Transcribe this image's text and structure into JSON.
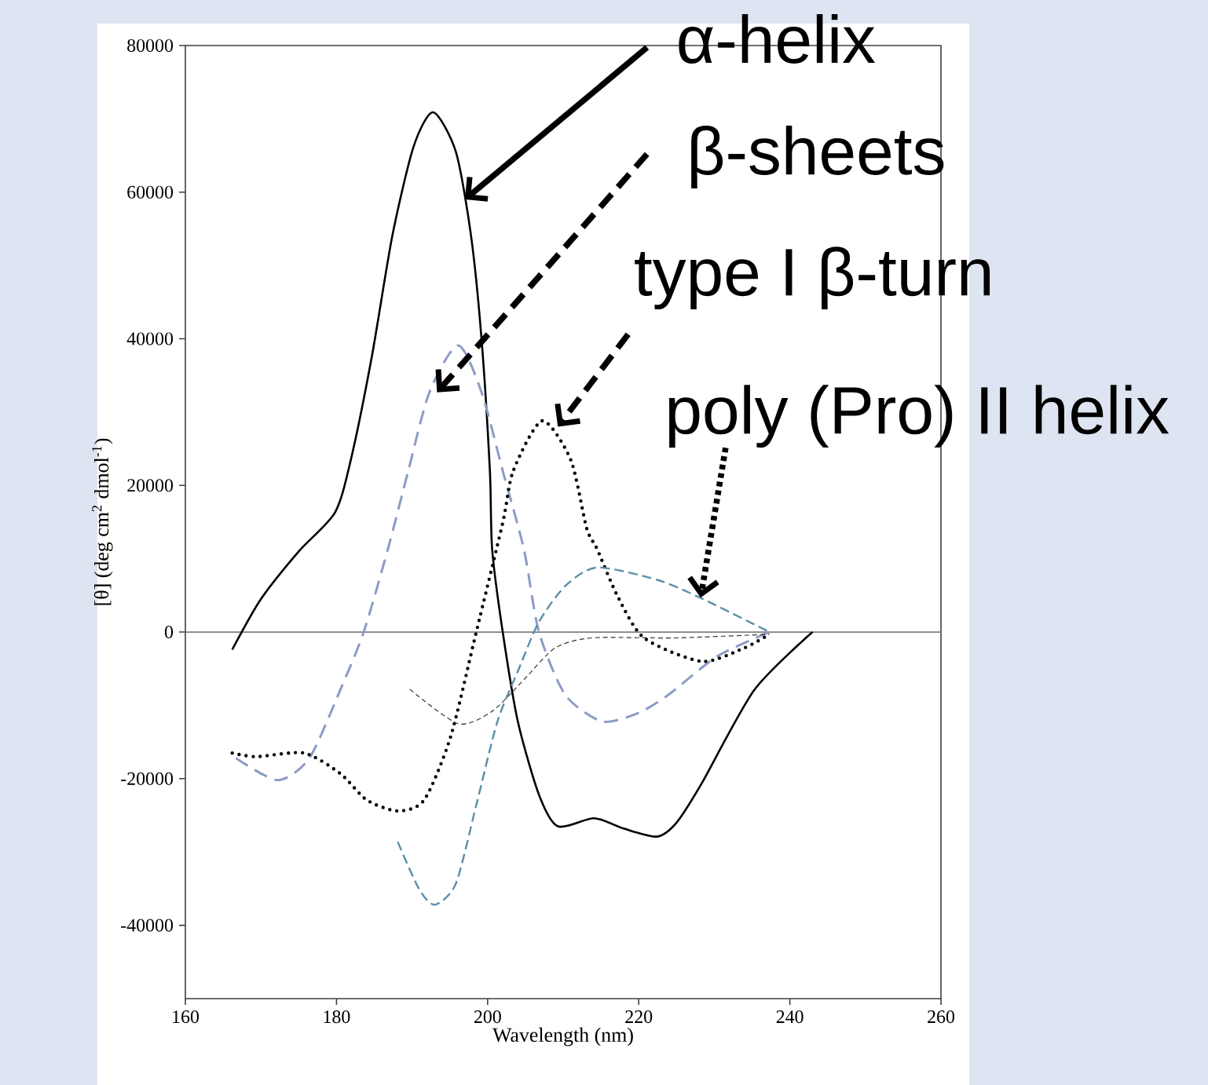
{
  "chart_data": {
    "type": "line",
    "xlabel": "Wavelength (nm)",
    "ylabel": "[θ] (deg cm$^{2}$ dmol$^{-1}$)",
    "xlim": [
      160,
      260
    ],
    "ylim": [
      -50000,
      80000
    ],
    "xticks": [
      160,
      180,
      200,
      220,
      240,
      260
    ],
    "yticks": [
      -40000,
      -20000,
      0,
      20000,
      40000,
      60000,
      80000
    ],
    "ref_lines": [
      {
        "axis": "y",
        "value": 0,
        "color": "#808080"
      }
    ],
    "annotations": [
      {
        "text": "α-helix",
        "x": 197,
        "y": 59000
      },
      {
        "text": "β-sheets",
        "x": 193.3,
        "y": 32700
      },
      {
        "text": "type I β-turn",
        "x": 209.3,
        "y": 28000
      },
      {
        "text": "poly (Pro) II helix",
        "x": 228.2,
        "y": 4700
      }
    ],
    "series": [
      {
        "color": "#000000",
        "line_style": "solid",
        "x": [
          166.2,
          170,
          175,
          179.8,
          181.9,
          184.7,
          187.4,
          190.2,
          192.8,
          195.8,
          197.8,
          199.2,
          200.3,
          200.6,
          202,
          204,
          206.8,
          209.3,
          214.1,
          218,
          222.4,
          225,
          228.3,
          235.3,
          243
        ],
        "values": [
          -2400,
          4500,
          11000,
          16300,
          23500,
          37700,
          54100,
          66200,
          70900,
          65500,
          54100,
          39900,
          22000,
          11300,
          0,
          -12200,
          -22200,
          -26500,
          -25400,
          -26800,
          -27900,
          -26000,
          -20700,
          -7900,
          0
        ]
      },
      {
        "color": "#8c9cc4",
        "line_style": "dashed",
        "x": [
          166.7,
          172.2,
          176.4,
          180.5,
          183.6,
          186.8,
          189.5,
          192.3,
          196.1,
          199.2,
          202,
          204.8,
          206.8,
          210.3,
          215.2,
          220,
          224,
          230.4,
          237.3
        ],
        "values": [
          -17200,
          -20200,
          -17200,
          -7900,
          0,
          11300,
          22000,
          32700,
          39100,
          32700,
          22000,
          11300,
          0,
          -8600,
          -12200,
          -11000,
          -8500,
          -3300,
          0
        ]
      },
      {
        "color": "#000000",
        "line_style": "dotted",
        "x": [
          166.2,
          169.4,
          175.7,
          180.5,
          184,
          188.1,
          191.6,
          195.1,
          198.5,
          202,
          203.4,
          207.2,
          211,
          213.1,
          214.5,
          217.2,
          220.7,
          228.3,
          233.9,
          237.3
        ],
        "values": [
          -16500,
          -17000,
          -16500,
          -19300,
          -22900,
          -24400,
          -22900,
          -14300,
          0,
          14900,
          22000,
          28800,
          23500,
          14200,
          11300,
          4900,
          -800,
          -4000,
          -2200,
          -300
        ]
      },
      {
        "color": "#5b8fa8",
        "line_style": "dashed",
        "x": [
          188.1,
          190.9,
          193,
          195.8,
          198.5,
          201.3,
          204.1,
          206.8,
          210.3,
          214.5,
          222.5,
          228.3,
          237.3
        ],
        "values": [
          -28600,
          -35000,
          -37200,
          -34300,
          -23600,
          -12200,
          -5100,
          1400,
          6300,
          8800,
          7100,
          4600,
          0
        ]
      },
      {
        "color": "#333333",
        "line_style": "dashed",
        "x": [
          189.7,
          196.1,
          200.6,
          204.8,
          208.9,
          213.8,
          224.9,
          237.3
        ],
        "values": [
          -7800,
          -12500,
          -10800,
          -6500,
          -2200,
          -800,
          -800,
          -300
        ]
      }
    ]
  }
}
